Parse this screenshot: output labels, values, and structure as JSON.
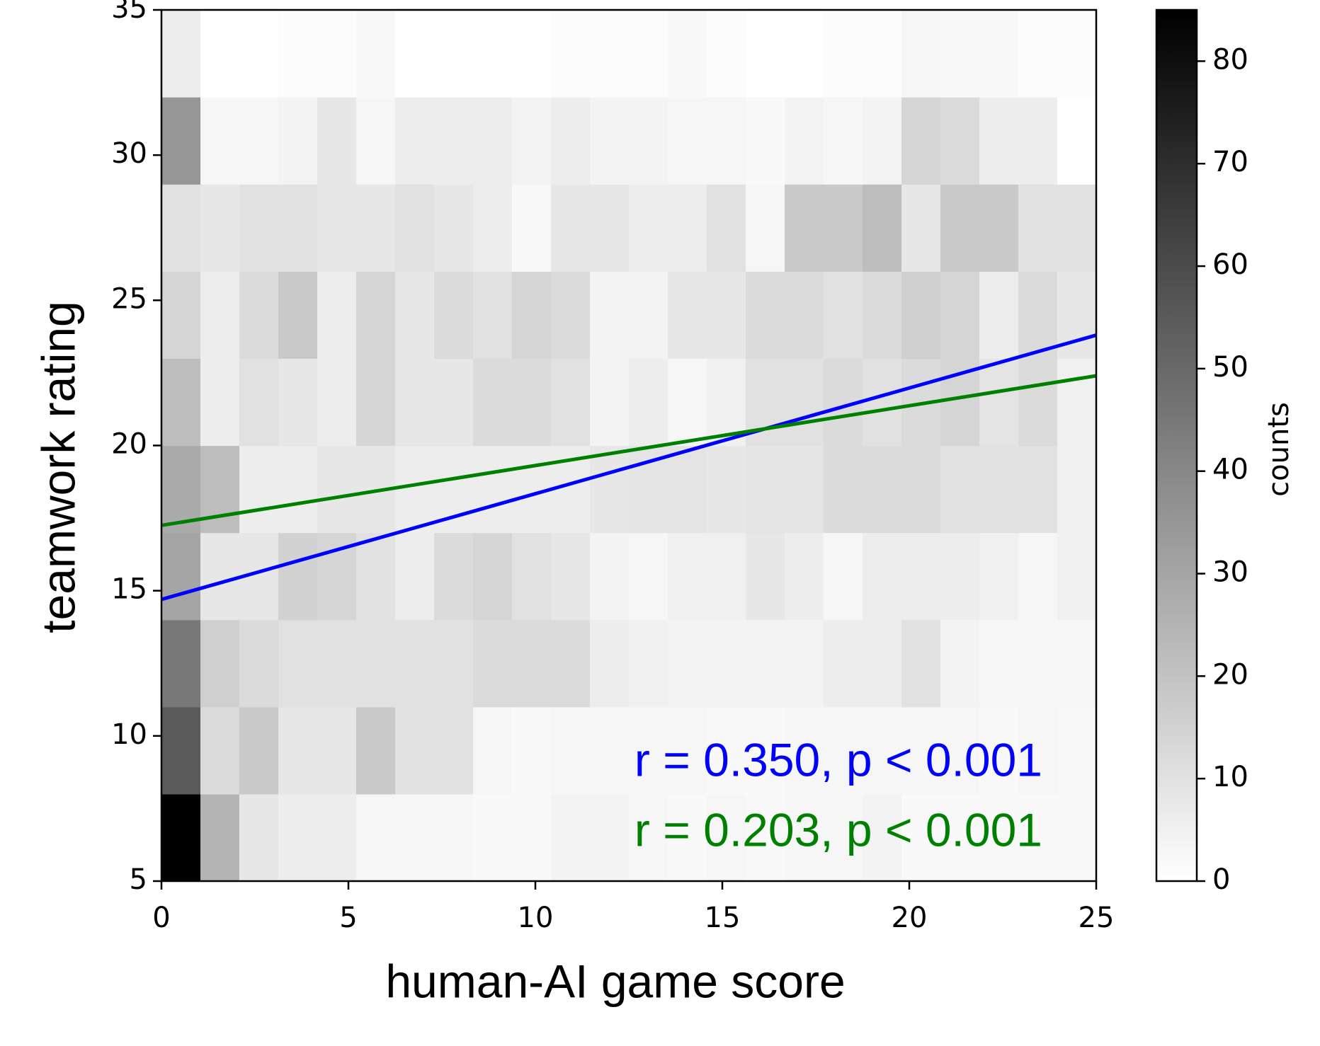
{
  "chart_data": {
    "type": "heatmap",
    "xlabel": "human-AI game score",
    "ylabel": "teamwork rating",
    "xlim": [
      0,
      25
    ],
    "ylim": [
      5,
      35
    ],
    "xticks": [
      0,
      5,
      10,
      15,
      20,
      25
    ],
    "yticks": [
      5,
      10,
      15,
      20,
      25,
      30,
      35
    ],
    "xbins": [
      0,
      1.042,
      2.083,
      3.125,
      4.167,
      5.208,
      6.25,
      7.292,
      8.333,
      9.375,
      10.417,
      11.458,
      12.5,
      13.542,
      14.583,
      15.625,
      16.667,
      17.708,
      18.75,
      19.792,
      20.833,
      21.875,
      22.917,
      23.958,
      25
    ],
    "ybins": [
      5,
      8,
      11,
      14,
      17,
      20,
      23,
      26,
      29,
      32,
      35
    ],
    "counts": [
      [
        85,
        25,
        8,
        6,
        6,
        3,
        3,
        3,
        2,
        2,
        4,
        4,
        3,
        2,
        3,
        2,
        3,
        3,
        4,
        2,
        2,
        2,
        2,
        2
      ],
      [
        55,
        12,
        18,
        8,
        8,
        18,
        10,
        10,
        3,
        2,
        3,
        3,
        3,
        3,
        2,
        2,
        3,
        3,
        3,
        3,
        3,
        2,
        3,
        2
      ],
      [
        45,
        16,
        12,
        10,
        10,
        10,
        10,
        10,
        12,
        12,
        12,
        6,
        5,
        4,
        4,
        4,
        4,
        6,
        6,
        10,
        4,
        3,
        3,
        3
      ],
      [
        30,
        8,
        8,
        15,
        14,
        10,
        6,
        12,
        14,
        10,
        8,
        4,
        3,
        5,
        5,
        8,
        6,
        3,
        6,
        6,
        6,
        5,
        3,
        5
      ],
      [
        28,
        22,
        6,
        6,
        8,
        8,
        6,
        6,
        6,
        6,
        6,
        8,
        9,
        9,
        8,
        9,
        9,
        12,
        12,
        12,
        10,
        10,
        10,
        5
      ],
      [
        22,
        6,
        10,
        8,
        6,
        14,
        8,
        8,
        12,
        12,
        10,
        4,
        6,
        3,
        5,
        10,
        10,
        12,
        10,
        12,
        14,
        9,
        12,
        5
      ],
      [
        14,
        6,
        12,
        18,
        6,
        14,
        8,
        12,
        10,
        14,
        12,
        4,
        4,
        8,
        8,
        12,
        12,
        10,
        12,
        16,
        14,
        6,
        12,
        8
      ],
      [
        10,
        8,
        10,
        10,
        8,
        8,
        10,
        8,
        6,
        2,
        8,
        8,
        6,
        6,
        10,
        3,
        18,
        18,
        22,
        8,
        18,
        18,
        10,
        10
      ],
      [
        35,
        3,
        3,
        4,
        8,
        3,
        6,
        6,
        6,
        4,
        6,
        4,
        4,
        3,
        3,
        2,
        4,
        3,
        4,
        14,
        12,
        6,
        6,
        0
      ],
      [
        6,
        0,
        0,
        1,
        1,
        2,
        0,
        0,
        0,
        0,
        1,
        1,
        1,
        2,
        1,
        0,
        0,
        1,
        1,
        3,
        2,
        2,
        1,
        1
      ]
    ],
    "colorbar": {
      "label": "counts",
      "clim": [
        0,
        85
      ],
      "ticks": [
        0,
        10,
        20,
        30,
        40,
        50,
        60,
        70,
        80
      ]
    },
    "lines": [
      {
        "color": "#0000ff",
        "x": [
          0,
          25
        ],
        "y": [
          14.7,
          23.8
        ],
        "annotation": "r = 0.350, p < 0.001"
      },
      {
        "color": "#008000",
        "x": [
          0,
          25
        ],
        "y": [
          17.25,
          22.4
        ],
        "annotation": "r = 0.203, p < 0.001"
      }
    ]
  }
}
